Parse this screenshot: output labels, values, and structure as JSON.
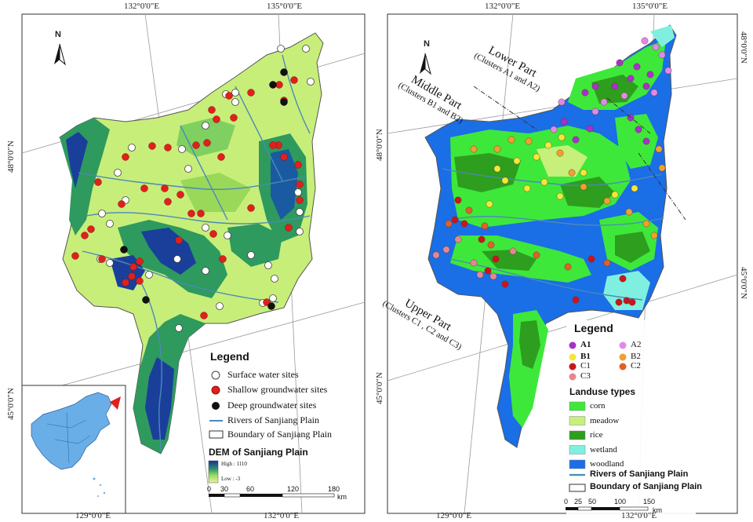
{
  "left": {
    "coords": {
      "top_left": "132°0'0\"E",
      "top_right": "135°0'0\"E",
      "bottom_left": "129°0'0\"E",
      "bottom_right": "132°0'0\"E",
      "left_48": "48°0'0\"N",
      "left_45": "45°0'0\"N"
    },
    "north": "N",
    "legend": {
      "title": "Legend",
      "surface": "Surface water sites",
      "shallow": "Shallow groundwater sites",
      "deep": "Deep groundwater sites",
      "rivers": "Rivers of Sanjiang Plain",
      "boundary": "Boundary of Sanjiang Plain",
      "dem_title": "DEM of Sanjiang Plain",
      "dem_high": "High : 1110",
      "dem_low": "Low : -3"
    },
    "scale": {
      "ticks": [
        "0",
        "30",
        "60",
        "120",
        "180"
      ],
      "unit": "km"
    }
  },
  "right": {
    "coords": {
      "top_left": "132°0'0\"E",
      "top_right": "135°0'0\"E",
      "bottom_left": "129°0'0\"E",
      "bottom_right": "132°0'0\"E",
      "left_48": "48°0'0\"N",
      "left_45": "45°0'0\"N",
      "right_48": "48°0'0\"N",
      "right_45": "45°0'0\"N"
    },
    "north": "N",
    "regions": {
      "lower": "Lower Part",
      "lower_sub": "(Clusters A1 and A2)",
      "middle": "Middle Part",
      "middle_sub": "(Clusters B1 and B2)",
      "upper": "Upper Part",
      "upper_sub": "(Clusters C1 , C2 and C3)"
    },
    "legend": {
      "title": "Legend",
      "clusters": [
        {
          "label": "A1",
          "color": "#a533c8",
          "bold": true
        },
        {
          "label": "A2",
          "color": "#e08ae6",
          "bold": false
        },
        {
          "label": "B1",
          "color": "#f2e83a",
          "bold": true
        },
        {
          "label": "B2",
          "color": "#f0a030",
          "bold": false
        },
        {
          "label": "C1",
          "color": "#c8161d",
          "bold": false
        },
        {
          "label": "C2",
          "color": "#e0602a",
          "bold": false
        },
        {
          "label": "C3",
          "color": "#e48890",
          "bold": false
        }
      ],
      "landuse_title": "Landuse types",
      "landuse": [
        {
          "label": "corn",
          "color": "#3ee83a"
        },
        {
          "label": "meadow",
          "color": "#c6f07a"
        },
        {
          "label": "rice",
          "color": "#2e9e1e"
        },
        {
          "label": "wetland",
          "color": "#7ff0e0"
        },
        {
          "label": "woodland",
          "color": "#1a6ee6"
        }
      ],
      "rivers": "Rivers of Sanjiang Plain",
      "boundary": "Boundary of Sanjiang Plain"
    },
    "scale": {
      "ticks": [
        "0",
        "25",
        "50",
        "100",
        "150"
      ],
      "unit": "km"
    }
  },
  "colors": {
    "plain": "#c8ee7a",
    "low_green": "#8fd86a",
    "forest": "#2e9a4e",
    "mountain": "#1a3f9a",
    "river": "#4a8ab8",
    "china": "#6aaee8",
    "water_blue": "#2a7ee8"
  }
}
